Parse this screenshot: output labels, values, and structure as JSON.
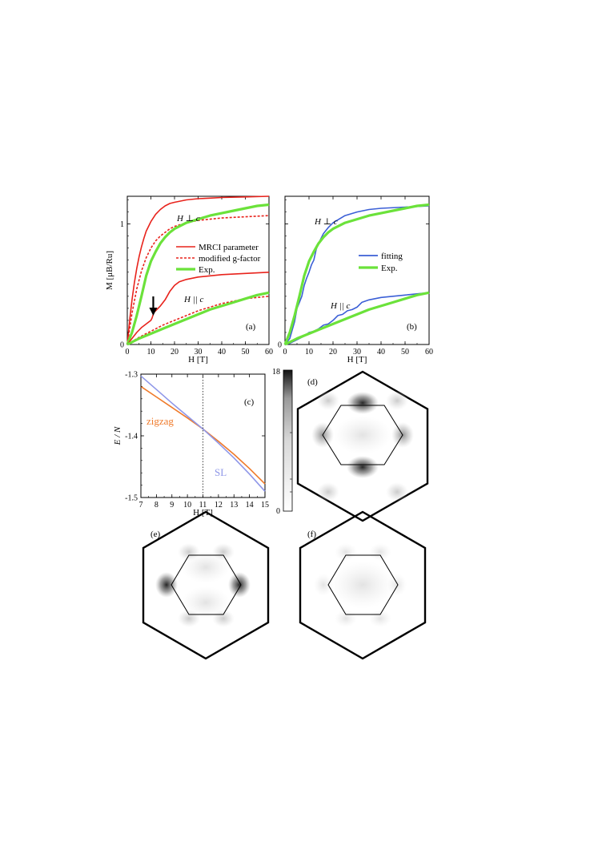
{
  "colors": {
    "mrci": "#e8231c",
    "exp": "#6be23a",
    "fitting": "#3b5fd6",
    "zigzag": "#ef7a2a",
    "sl": "#8f97e8",
    "black": "#000000"
  },
  "chart_data": [
    {
      "id": "a",
      "type": "line",
      "panel_label": "(a)",
      "xlabel": "H [T]",
      "ylabel": "M [μB/Ru]",
      "xlim": [
        0,
        60
      ],
      "ylim": [
        0,
        1.23
      ],
      "xticks": [
        "0",
        "10",
        "20",
        "30",
        "40",
        "50",
        "60"
      ],
      "yticks": [
        "0",
        "1"
      ],
      "legend": [
        "MRCI parameter",
        "modified g-factor",
        "Exp."
      ],
      "legend_position": "center-right",
      "annotations": [
        "H ⊥ c",
        "H || c"
      ],
      "arrow_at_x": 11,
      "series": [
        {
          "name": "MRCI parameter",
          "style": "solid",
          "color": "#e8231c",
          "label": "H ⊥ c",
          "x": [
            0,
            1,
            2,
            3,
            4,
            5,
            6,
            7,
            8,
            10,
            12,
            14,
            16,
            18,
            20,
            25,
            30,
            35,
            40,
            50,
            60
          ],
          "y": [
            0,
            0.2,
            0.37,
            0.51,
            0.63,
            0.73,
            0.81,
            0.88,
            0.94,
            1.02,
            1.08,
            1.12,
            1.15,
            1.17,
            1.18,
            1.2,
            1.21,
            1.215,
            1.22,
            1.225,
            1.23
          ]
        },
        {
          "name": "modified g-factor",
          "style": "dashed",
          "color": "#e8231c",
          "label": "H ⊥ c",
          "x": [
            0,
            2,
            4,
            6,
            8,
            10,
            12,
            14,
            16,
            18,
            20,
            25,
            30,
            35,
            40,
            50,
            60
          ],
          "y": [
            0,
            0.26,
            0.46,
            0.61,
            0.72,
            0.8,
            0.86,
            0.9,
            0.93,
            0.96,
            0.98,
            1.01,
            1.03,
            1.04,
            1.05,
            1.06,
            1.07
          ]
        },
        {
          "name": "Exp.",
          "style": "solid",
          "color": "#6be23a",
          "label": "H ⊥ c",
          "x": [
            0,
            2,
            4,
            6,
            8,
            10,
            12,
            14,
            16,
            18,
            20,
            25,
            30,
            35,
            40,
            45,
            50,
            55,
            60
          ],
          "y": [
            0,
            0.1,
            0.24,
            0.4,
            0.57,
            0.69,
            0.77,
            0.84,
            0.89,
            0.93,
            0.96,
            1.01,
            1.04,
            1.07,
            1.09,
            1.11,
            1.13,
            1.15,
            1.16
          ]
        },
        {
          "name": "MRCI parameter",
          "style": "solid",
          "color": "#e8231c",
          "label": "H || c",
          "x": [
            0,
            2,
            4,
            6,
            8,
            10,
            10.5,
            11,
            11.5,
            12,
            14,
            16,
            18,
            20,
            22,
            25,
            30,
            40,
            50,
            60
          ],
          "y": [
            0,
            0.05,
            0.1,
            0.14,
            0.17,
            0.2,
            0.22,
            0.25,
            0.27,
            0.28,
            0.32,
            0.37,
            0.44,
            0.49,
            0.52,
            0.54,
            0.56,
            0.58,
            0.59,
            0.6
          ]
        },
        {
          "name": "modified g-factor",
          "style": "dashed",
          "color": "#e8231c",
          "label": "H || c",
          "x": [
            0,
            5,
            10,
            15,
            20,
            25,
            30,
            35,
            40,
            45,
            50,
            55,
            60
          ],
          "y": [
            0,
            0.06,
            0.11,
            0.16,
            0.2,
            0.24,
            0.28,
            0.31,
            0.34,
            0.36,
            0.38,
            0.39,
            0.4
          ]
        },
        {
          "name": "Exp.",
          "style": "solid",
          "color": "#6be23a",
          "label": "H || c",
          "x": [
            0,
            5,
            10,
            15,
            20,
            25,
            30,
            35,
            40,
            45,
            50,
            55,
            60
          ],
          "y": [
            0,
            0.05,
            0.09,
            0.13,
            0.17,
            0.21,
            0.25,
            0.29,
            0.32,
            0.35,
            0.38,
            0.41,
            0.43
          ]
        }
      ]
    },
    {
      "id": "b",
      "type": "line",
      "panel_label": "(b)",
      "xlabel": "H [T]",
      "xlim": [
        0,
        60
      ],
      "ylim": [
        0,
        1.23
      ],
      "xticks": [
        "0",
        "10",
        "20",
        "30",
        "40",
        "50",
        "60"
      ],
      "legend": [
        "fitting",
        "Exp."
      ],
      "legend_position": "center-right",
      "annotations": [
        "H ⊥ c",
        "H || c"
      ],
      "series": [
        {
          "name": "fitting",
          "color": "#3b5fd6",
          "label": "H ⊥ c",
          "x": [
            0,
            2,
            4,
            5,
            6,
            7,
            8,
            9,
            10,
            11,
            12,
            13,
            14,
            16,
            18,
            20,
            25,
            30,
            35,
            40,
            50,
            60
          ],
          "y": [
            0,
            0.05,
            0.19,
            0.3,
            0.35,
            0.4,
            0.49,
            0.55,
            0.6,
            0.66,
            0.7,
            0.79,
            0.84,
            0.92,
            0.97,
            1.01,
            1.07,
            1.1,
            1.12,
            1.13,
            1.14,
            1.15
          ]
        },
        {
          "name": "Exp.",
          "color": "#6be23a",
          "label": "H ⊥ c",
          "x": [
            0,
            2,
            4,
            6,
            8,
            10,
            12,
            14,
            16,
            18,
            20,
            25,
            30,
            35,
            40,
            45,
            50,
            55,
            60
          ],
          "y": [
            0,
            0.1,
            0.24,
            0.4,
            0.57,
            0.69,
            0.77,
            0.84,
            0.89,
            0.93,
            0.96,
            1.01,
            1.04,
            1.07,
            1.09,
            1.11,
            1.13,
            1.15,
            1.16
          ]
        },
        {
          "name": "fitting",
          "color": "#3b5fd6",
          "label": "H || c",
          "x": [
            0,
            2,
            4,
            6,
            8,
            10,
            12,
            14,
            16,
            18,
            20,
            22,
            24,
            26,
            28,
            30,
            32,
            35,
            40,
            50,
            60
          ],
          "y": [
            0,
            0.01,
            0.03,
            0.05,
            0.07,
            0.1,
            0.11,
            0.13,
            0.16,
            0.17,
            0.2,
            0.24,
            0.25,
            0.28,
            0.29,
            0.31,
            0.35,
            0.37,
            0.39,
            0.41,
            0.43
          ]
        },
        {
          "name": "Exp.",
          "color": "#6be23a",
          "label": "H || c",
          "x": [
            0,
            5,
            10,
            15,
            20,
            25,
            30,
            35,
            40,
            45,
            50,
            55,
            60
          ],
          "y": [
            0,
            0.05,
            0.09,
            0.13,
            0.17,
            0.21,
            0.25,
            0.29,
            0.32,
            0.35,
            0.38,
            0.41,
            0.43
          ]
        }
      ]
    },
    {
      "id": "c",
      "type": "line",
      "panel_label": "(c)",
      "xlabel": "H [T]",
      "ylabel": "E / N",
      "xlim": [
        7,
        15
      ],
      "ylim": [
        -1.5,
        -1.3
      ],
      "xticks": [
        "7",
        "8",
        "9",
        "10",
        "11",
        "12",
        "13",
        "14",
        "15"
      ],
      "yticks": [
        "-1.3",
        "-1.4",
        "-1.5"
      ],
      "vline_x": 11,
      "series": [
        {
          "name": "zigzag",
          "color": "#ef7a2a",
          "x": [
            7,
            8,
            9,
            10,
            11,
            12,
            13,
            14,
            15
          ],
          "y": [
            -1.32,
            -1.337,
            -1.354,
            -1.371,
            -1.389,
            -1.409,
            -1.43,
            -1.453,
            -1.478
          ]
        },
        {
          "name": "SL",
          "color": "#8f97e8",
          "x": [
            7,
            8,
            9,
            10,
            11,
            12,
            13,
            14,
            15
          ],
          "y": [
            -1.303,
            -1.325,
            -1.347,
            -1.368,
            -1.389,
            -1.412,
            -1.436,
            -1.462,
            -1.49
          ]
        }
      ]
    },
    {
      "id": "colorbar",
      "type": "heatmap",
      "colorbar_ticks": [
        "18",
        "0"
      ],
      "range": [
        0,
        18
      ]
    },
    {
      "id": "d",
      "type": "heatmap",
      "panel_label": "(d)",
      "description_of_spots": "six strong intensity spots at the first Brillouin zone boundary"
    },
    {
      "id": "e",
      "type": "heatmap",
      "panel_label": "(e)"
    },
    {
      "id": "f",
      "type": "heatmap",
      "panel_label": "(f)"
    }
  ]
}
